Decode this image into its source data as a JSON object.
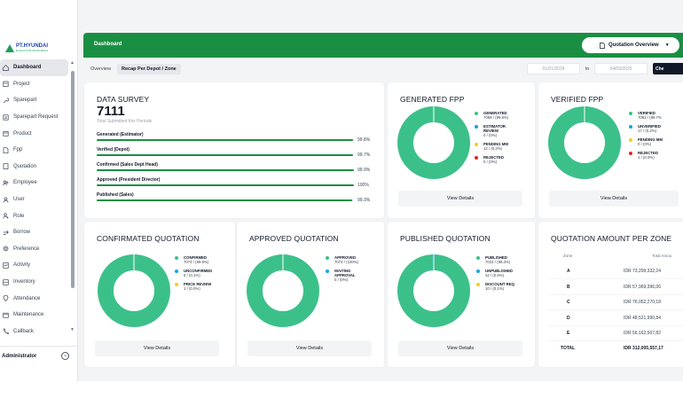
{
  "brand": {
    "name": "PT.HYUNDAI",
    "subtitle": "ELEVATOR INDONESIA",
    "logo_icon": "triangle-logo-icon"
  },
  "sidebar": {
    "items": [
      {
        "label": "Dashboard",
        "icon": "home-icon",
        "active": true
      },
      {
        "label": "Project",
        "icon": "building-icon"
      },
      {
        "label": "Sparepart",
        "icon": "wrench-icon"
      },
      {
        "label": "Sparepart Request",
        "icon": "list-icon"
      },
      {
        "label": "Product",
        "icon": "box-icon"
      },
      {
        "label": "Fpp",
        "icon": "document-icon"
      },
      {
        "label": "Quotation",
        "icon": "file-icon"
      },
      {
        "label": "Employee",
        "icon": "users-icon"
      },
      {
        "label": "User",
        "icon": "user-icon"
      },
      {
        "label": "Role",
        "icon": "role-icon"
      },
      {
        "label": "Borrow",
        "icon": "borrow-icon"
      },
      {
        "label": "Preference",
        "icon": "gear-icon"
      },
      {
        "label": "Activity",
        "icon": "activity-icon"
      },
      {
        "label": "Inventory",
        "icon": "inventory-icon"
      },
      {
        "label": "Attendance",
        "icon": "location-icon"
      },
      {
        "label": "Maintenance",
        "icon": "maintenance-icon"
      },
      {
        "label": "Callback",
        "icon": "phone-icon"
      }
    ],
    "footer_user": "Administrator"
  },
  "topbar": {
    "title": "Dashboard",
    "dropdown_label": "Quotation Overview"
  },
  "subbar": {
    "tabs": [
      "Overview",
      "Recap Per Depot / Zone"
    ],
    "date_from": "01/01/2024",
    "to_label": "to",
    "date_to": "04/09/2025",
    "check_label": "Che"
  },
  "survey": {
    "title": "DATA SURVEY",
    "total": "7111",
    "subtitle": "Total Submitted this Periode",
    "rows": [
      {
        "label": "Generated (Estimator)",
        "pct": "99.8%",
        "value": 99.8
      },
      {
        "label": "Verified (Depot)",
        "pct": "99.7%",
        "value": 99.7
      },
      {
        "label": "Confirmed (Sales Dept Head)",
        "pct": "99.9%",
        "value": 99.9
      },
      {
        "label": "Approved (President Director)",
        "pct": "100%",
        "value": 100
      },
      {
        "label": "Published (Sales)",
        "pct": "99.3%",
        "value": 99.3
      }
    ]
  },
  "colors": {
    "primary": "#1a8f43",
    "teal": "#3cc08a",
    "blue": "#0ea5e9",
    "yellow": "#facc15",
    "red": "#dc2626",
    "track": "#e5e7eb"
  },
  "view_details": "View Details",
  "donuts": {
    "generated": {
      "title": "GENERATED FPP",
      "items": [
        {
          "name": "GENERATED",
          "val": "7099 / (99.8%)",
          "color": "#3cc08a",
          "value": 7099
        },
        {
          "name": "ESTIMATOR REVIEW",
          "val": "0 / (0%)",
          "color": "#0ea5e9",
          "value": 0
        },
        {
          "name": "PENDING MM",
          "val": "12 / (0.2%)",
          "color": "#facc15",
          "value": 12
        },
        {
          "name": "REJECTED",
          "val": "0 / (0%)",
          "color": "#dc2626",
          "value": 0
        }
      ]
    },
    "verified": {
      "title": "VERIFIED FPP",
      "items": [
        {
          "name": "VERIFIED",
          "val": "7081 / (99.7%",
          "color": "#3cc08a",
          "value": 7081
        },
        {
          "name": "UNVERIFIED",
          "val": "17 / (0.2%)",
          "color": "#0ea5e9",
          "value": 17
        },
        {
          "name": "PENDING MM",
          "val": "0 / (0%)",
          "color": "#facc15",
          "value": 0
        },
        {
          "name": "REJECTED",
          "val": "1 / (0.0%)",
          "color": "#dc2626",
          "value": 1
        }
      ]
    },
    "confirmed": {
      "title": "CONFIRMATED QUOTATION",
      "items": [
        {
          "name": "CONFIRMED",
          "val": "7074 / (99.9%)",
          "color": "#3cc08a",
          "value": 7074
        },
        {
          "name": "UNCONFIRMED",
          "val": "8 / (0.1%)",
          "color": "#0ea5e9",
          "value": 8
        },
        {
          "name": "PRICE REVIEW",
          "val": "1 / (0.0%)",
          "color": "#facc15",
          "value": 1
        }
      ]
    },
    "approved": {
      "title": "APPROVED QUOTATION",
      "items": [
        {
          "name": "APPROVED",
          "val": "7074 / (100%)",
          "color": "#3cc08a",
          "value": 7074
        },
        {
          "name": "WAITING APPROVAL",
          "val": "0 / (0%)",
          "color": "#0ea5e9",
          "value": 0
        }
      ]
    },
    "published": {
      "title": "PUBLISHED QUOTATION",
      "items": [
        {
          "name": "PUBLISHED",
          "val": "7022 / (99.3%)",
          "color": "#3cc08a",
          "value": 7022
        },
        {
          "name": "UNPUBLISHED",
          "val": "42 / (0.6%)",
          "color": "#0ea5e9",
          "value": 42
        },
        {
          "name": "DISCOUNT REQ",
          "val": "10 / (0.1%)",
          "color": "#facc15",
          "value": 10
        }
      ]
    }
  },
  "zone": {
    "title": "QUOTATION AMOUNT PER ZONE",
    "col_zone": "Zone",
    "col_amount": "Total Amou",
    "rows": [
      {
        "zone": "A",
        "amount": "IDR 73,299,332,24"
      },
      {
        "zone": "B",
        "amount": "IDR 57,969,396,06"
      },
      {
        "zone": "C",
        "amount": "IDR 76,052,270,18"
      },
      {
        "zone": "D",
        "amount": "IDR 48,521,990,84"
      },
      {
        "zone": "E",
        "amount": "IDR 56,162,567,82"
      }
    ],
    "total_label": "TOTAL",
    "total_amount": "IDR 312,005,557,17"
  }
}
